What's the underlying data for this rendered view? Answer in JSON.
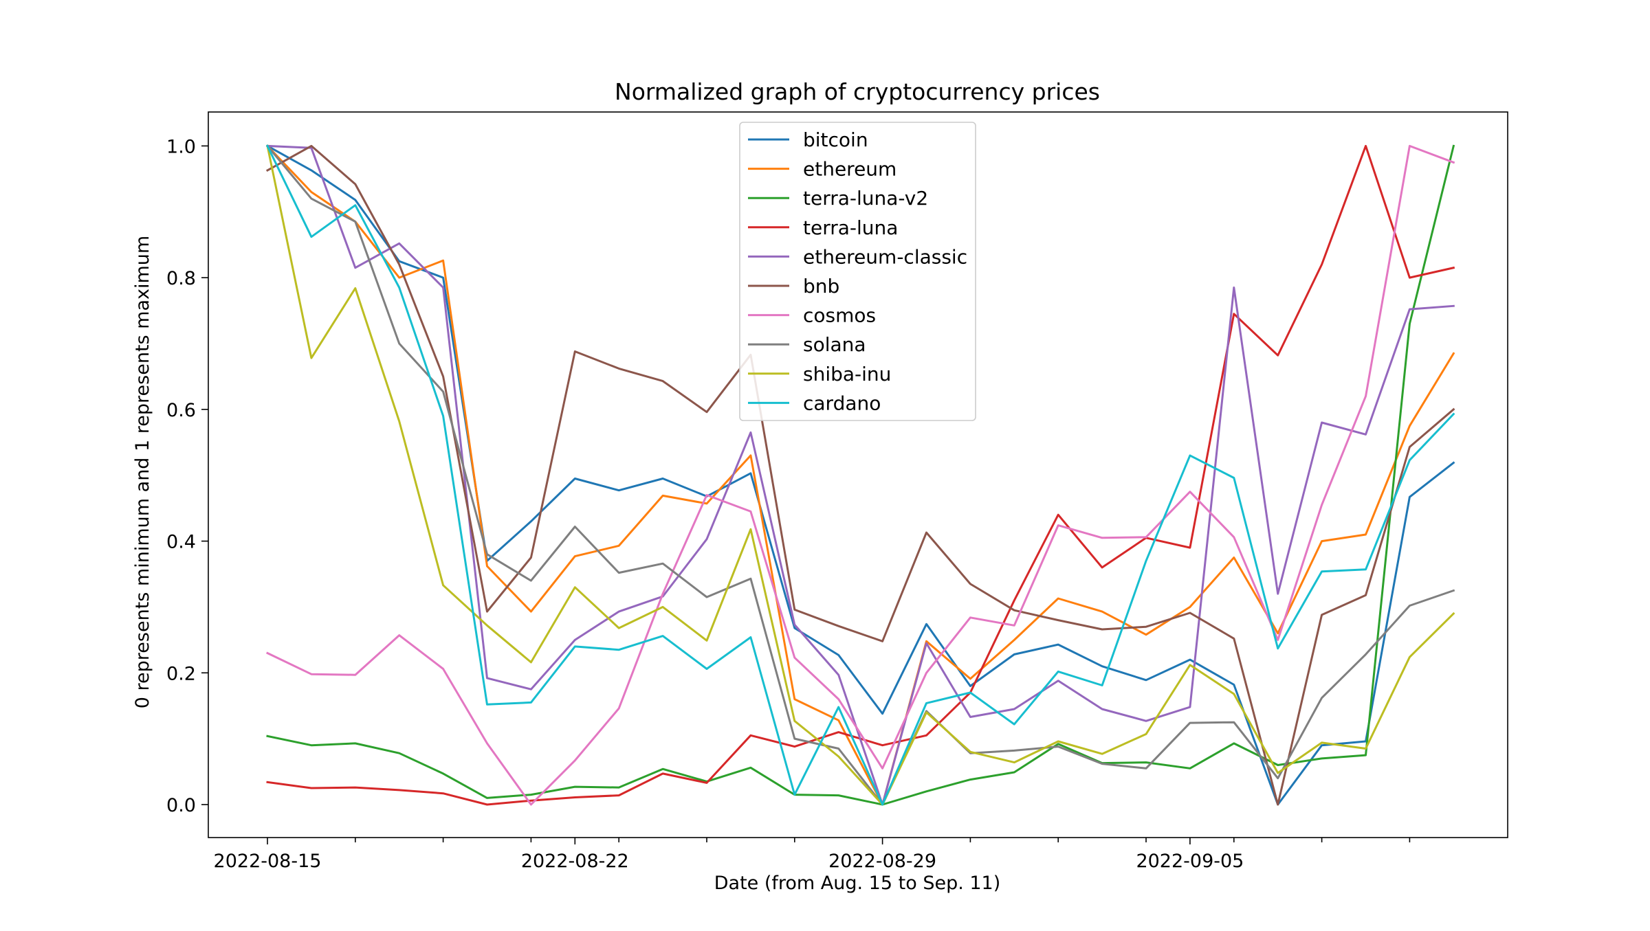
{
  "chart_data": {
    "type": "line",
    "title": "Normalized graph of cryptocurrency prices",
    "xlabel": "Date (from Aug. 15 to Sep. 11)",
    "ylabel": "0 represents minimum and 1 represents maximum",
    "x": [
      "2022-08-15",
      "2022-08-16",
      "2022-08-17",
      "2022-08-18",
      "2022-08-19",
      "2022-08-20",
      "2022-08-21",
      "2022-08-22",
      "2022-08-23",
      "2022-08-24",
      "2022-08-25",
      "2022-08-26",
      "2022-08-27",
      "2022-08-28",
      "2022-08-29",
      "2022-08-30",
      "2022-08-31",
      "2022-09-01",
      "2022-09-02",
      "2022-09-03",
      "2022-09-04",
      "2022-09-05",
      "2022-09-06",
      "2022-09-07",
      "2022-09-08",
      "2022-09-09",
      "2022-09-10",
      "2022-09-11"
    ],
    "xticks_labeled": [
      "2022-08-15",
      "2022-08-22",
      "2022-08-29",
      "2022-09-05"
    ],
    "ylim": [
      -0.05,
      1.05
    ],
    "yticks": [
      "0.0",
      "0.2",
      "0.4",
      "0.6",
      "0.8",
      "1.0"
    ],
    "legend_position": "upper center",
    "grid": false,
    "series": [
      {
        "name": "bitcoin",
        "color": "#1f77b4",
        "values": [
          1.0,
          0.963,
          0.918,
          0.825,
          0.8,
          0.37,
          0.43,
          0.495,
          0.477,
          0.495,
          0.468,
          0.503,
          0.268,
          0.227,
          0.138,
          0.274,
          0.18,
          0.228,
          0.243,
          0.21,
          0.189,
          0.22,
          0.182,
          0.0,
          0.09,
          0.096,
          0.467,
          0.519
        ]
      },
      {
        "name": "ethereum",
        "color": "#ff7f0e",
        "values": [
          1.0,
          0.93,
          0.885,
          0.8,
          0.826,
          0.362,
          0.293,
          0.377,
          0.393,
          0.469,
          0.457,
          0.53,
          0.16,
          0.128,
          0.0,
          0.248,
          0.191,
          0.25,
          0.313,
          0.293,
          0.258,
          0.3,
          0.375,
          0.26,
          0.4,
          0.41,
          0.575,
          0.685
        ]
      },
      {
        "name": "terra-luna-v2",
        "color": "#2ca02c",
        "values": [
          0.104,
          0.09,
          0.093,
          0.078,
          0.047,
          0.01,
          0.015,
          0.027,
          0.026,
          0.054,
          0.035,
          0.056,
          0.015,
          0.014,
          0.0,
          0.02,
          0.038,
          0.049,
          0.092,
          0.063,
          0.064,
          0.055,
          0.093,
          0.06,
          0.07,
          0.075,
          0.73,
          1.0
        ]
      },
      {
        "name": "terra-luna",
        "color": "#d62728",
        "values": [
          0.034,
          0.025,
          0.026,
          0.022,
          0.017,
          0.0,
          0.006,
          0.011,
          0.014,
          0.047,
          0.033,
          0.105,
          0.088,
          0.11,
          0.09,
          0.105,
          0.17,
          0.31,
          0.44,
          0.36,
          0.405,
          0.39,
          0.745,
          0.682,
          0.82,
          1.0,
          0.8,
          0.815
        ]
      },
      {
        "name": "ethereum-classic",
        "color": "#9467bd",
        "values": [
          1.0,
          0.997,
          0.815,
          0.852,
          0.785,
          0.192,
          0.175,
          0.25,
          0.293,
          0.316,
          0.403,
          0.565,
          0.273,
          0.197,
          0.0,
          0.245,
          0.133,
          0.145,
          0.188,
          0.145,
          0.127,
          0.148,
          0.785,
          0.32,
          0.58,
          0.562,
          0.752,
          0.757
        ]
      },
      {
        "name": "bnb",
        "color": "#8c564b",
        "values": [
          0.963,
          1.0,
          0.942,
          0.82,
          0.65,
          0.293,
          0.375,
          0.688,
          0.662,
          0.643,
          0.596,
          0.683,
          0.296,
          0.271,
          0.248,
          0.413,
          0.335,
          0.295,
          0.28,
          0.266,
          0.27,
          0.291,
          0.252,
          0.0,
          0.288,
          0.318,
          0.543,
          0.6
        ]
      },
      {
        "name": "cosmos",
        "color": "#e377c2",
        "values": [
          0.23,
          0.198,
          0.197,
          0.257,
          0.206,
          0.093,
          0.0,
          0.067,
          0.146,
          0.32,
          0.47,
          0.445,
          0.223,
          0.16,
          0.055,
          0.2,
          0.284,
          0.272,
          0.424,
          0.405,
          0.406,
          0.475,
          0.406,
          0.25,
          0.455,
          0.62,
          1.0,
          0.975
        ]
      },
      {
        "name": "solana",
        "color": "#7f7f7f",
        "values": [
          1.0,
          0.92,
          0.885,
          0.7,
          0.627,
          0.38,
          0.34,
          0.422,
          0.352,
          0.366,
          0.315,
          0.343,
          0.1,
          0.085,
          0.0,
          0.142,
          0.078,
          0.082,
          0.088,
          0.062,
          0.055,
          0.124,
          0.125,
          0.04,
          0.162,
          0.228,
          0.302,
          0.325
        ]
      },
      {
        "name": "shiba-inu",
        "color": "#bcbd22",
        "values": [
          1.0,
          0.678,
          0.784,
          0.582,
          0.333,
          0.272,
          0.216,
          0.33,
          0.268,
          0.3,
          0.249,
          0.418,
          0.127,
          0.073,
          0.0,
          0.14,
          0.08,
          0.064,
          0.096,
          0.077,
          0.107,
          0.212,
          0.168,
          0.048,
          0.094,
          0.085,
          0.224,
          0.29
        ]
      },
      {
        "name": "cardano",
        "color": "#17becf",
        "values": [
          1.0,
          0.862,
          0.91,
          0.785,
          0.59,
          0.152,
          0.155,
          0.24,
          0.235,
          0.256,
          0.206,
          0.254,
          0.015,
          0.148,
          0.0,
          0.154,
          0.17,
          0.122,
          0.202,
          0.181,
          0.37,
          0.53,
          0.496,
          0.237,
          0.354,
          0.357,
          0.523,
          0.593
        ]
      }
    ]
  }
}
